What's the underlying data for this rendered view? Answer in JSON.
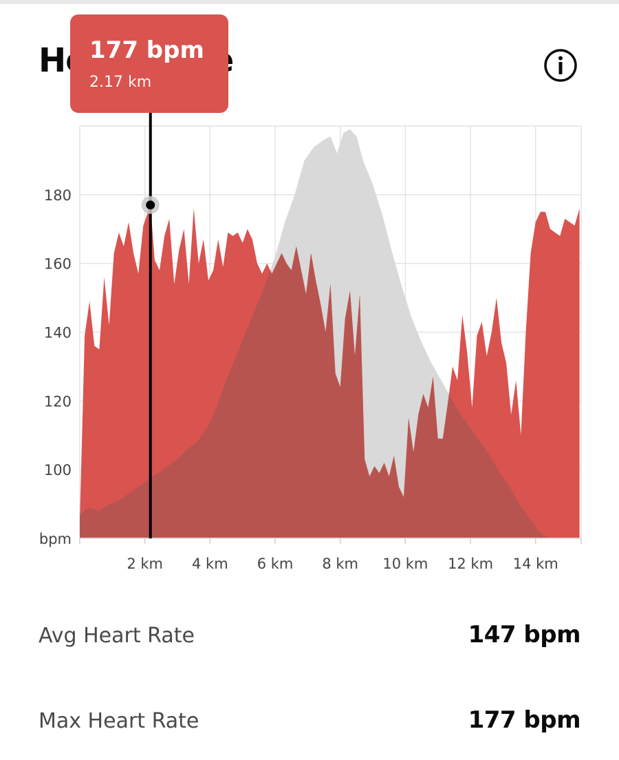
{
  "header": {
    "title": "Heart Rate"
  },
  "tooltip": {
    "value": "177 bpm",
    "distance": "2.17 km"
  },
  "stats": [
    {
      "label": "Avg Heart Rate",
      "value": "147 bpm"
    },
    {
      "label": "Max Heart Rate",
      "value": "177 bpm"
    }
  ],
  "colors": {
    "heart_rate": "#d9534f",
    "elevation": "#d9d9d9",
    "overlap": "#b85450",
    "cursor": "#000000"
  },
  "icons": {
    "info": "info-circle-icon"
  },
  "chart_data": {
    "type": "area",
    "ylabel": "bpm",
    "xlim": [
      0,
      15.4
    ],
    "ylim": [
      80,
      200
    ],
    "x_ticks": [
      {
        "value": 2,
        "label": "2 km"
      },
      {
        "value": 4,
        "label": "4 km"
      },
      {
        "value": 6,
        "label": "6 km"
      },
      {
        "value": 8,
        "label": "8 km"
      },
      {
        "value": 10,
        "label": "10 km"
      },
      {
        "value": 12,
        "label": "12 km"
      },
      {
        "value": 14,
        "label": "14 km"
      }
    ],
    "y_ticks": [
      {
        "value": 80,
        "label": "bpm"
      },
      {
        "value": 100,
        "label": "100"
      },
      {
        "value": 120,
        "label": "120"
      },
      {
        "value": 140,
        "label": "140"
      },
      {
        "value": 160,
        "label": "160"
      },
      {
        "value": 180,
        "label": "180"
      }
    ],
    "grid": true,
    "cursor": {
      "x": 2.17,
      "y": 177
    },
    "series": [
      {
        "kind": "heart_rate",
        "points": [
          [
            0.0,
            85
          ],
          [
            0.15,
            139
          ],
          [
            0.3,
            149
          ],
          [
            0.45,
            136
          ],
          [
            0.6,
            135
          ],
          [
            0.75,
            156
          ],
          [
            0.9,
            142
          ],
          [
            1.05,
            163
          ],
          [
            1.2,
            169
          ],
          [
            1.35,
            165
          ],
          [
            1.5,
            172
          ],
          [
            1.65,
            163
          ],
          [
            1.8,
            157
          ],
          [
            1.95,
            171
          ],
          [
            2.17,
            177
          ],
          [
            2.3,
            161
          ],
          [
            2.45,
            158
          ],
          [
            2.6,
            168
          ],
          [
            2.75,
            173
          ],
          [
            2.9,
            154
          ],
          [
            3.05,
            164
          ],
          [
            3.2,
            170
          ],
          [
            3.35,
            154
          ],
          [
            3.5,
            176
          ],
          [
            3.65,
            160
          ],
          [
            3.8,
            167
          ],
          [
            3.95,
            155
          ],
          [
            4.1,
            158
          ],
          [
            4.25,
            167
          ],
          [
            4.4,
            159
          ],
          [
            4.55,
            169
          ],
          [
            4.7,
            168
          ],
          [
            4.85,
            169
          ],
          [
            5.0,
            166
          ],
          [
            5.15,
            170
          ],
          [
            5.3,
            167
          ],
          [
            5.45,
            160
          ],
          [
            5.6,
            157
          ],
          [
            5.75,
            160
          ],
          [
            5.9,
            157
          ],
          [
            6.05,
            160
          ],
          [
            6.2,
            163
          ],
          [
            6.35,
            160
          ],
          [
            6.5,
            158
          ],
          [
            6.65,
            165
          ],
          [
            6.8,
            158
          ],
          [
            6.95,
            151
          ],
          [
            7.1,
            163
          ],
          [
            7.25,
            155
          ],
          [
            7.4,
            148
          ],
          [
            7.55,
            140
          ],
          [
            7.7,
            154
          ],
          [
            7.85,
            128
          ],
          [
            8.0,
            124
          ],
          [
            8.15,
            144
          ],
          [
            8.3,
            152
          ],
          [
            8.45,
            133
          ],
          [
            8.6,
            151
          ],
          [
            8.75,
            103
          ],
          [
            8.9,
            98
          ],
          [
            9.05,
            101
          ],
          [
            9.2,
            99
          ],
          [
            9.35,
            102
          ],
          [
            9.5,
            98
          ],
          [
            9.65,
            104
          ],
          [
            9.8,
            95
          ],
          [
            9.95,
            92
          ],
          [
            10.1,
            115
          ],
          [
            10.25,
            105
          ],
          [
            10.4,
            116
          ],
          [
            10.55,
            122
          ],
          [
            10.7,
            118
          ],
          [
            10.85,
            127
          ],
          [
            11.0,
            109
          ],
          [
            11.15,
            109
          ],
          [
            11.3,
            119
          ],
          [
            11.45,
            130
          ],
          [
            11.6,
            126
          ],
          [
            11.75,
            145
          ],
          [
            11.9,
            134
          ],
          [
            12.05,
            118
          ],
          [
            12.2,
            139
          ],
          [
            12.35,
            143
          ],
          [
            12.5,
            133
          ],
          [
            12.65,
            140
          ],
          [
            12.8,
            150
          ],
          [
            12.95,
            137
          ],
          [
            13.1,
            131
          ],
          [
            13.25,
            116
          ],
          [
            13.4,
            126
          ],
          [
            13.55,
            110
          ],
          [
            13.7,
            140
          ],
          [
            13.85,
            163
          ],
          [
            14.0,
            172
          ],
          [
            14.15,
            175
          ],
          [
            14.3,
            175
          ],
          [
            14.45,
            170
          ],
          [
            14.6,
            169
          ],
          [
            14.75,
            168
          ],
          [
            14.9,
            173
          ],
          [
            15.05,
            172
          ],
          [
            15.2,
            171
          ],
          [
            15.35,
            176
          ]
        ]
      },
      {
        "kind": "elevation",
        "points": [
          [
            0.0,
            87
          ],
          [
            0.3,
            89
          ],
          [
            0.6,
            88
          ],
          [
            0.9,
            90
          ],
          [
            1.2,
            91
          ],
          [
            1.5,
            93
          ],
          [
            1.8,
            95
          ],
          [
            2.1,
            97
          ],
          [
            2.4,
            99
          ],
          [
            2.7,
            101
          ],
          [
            3.0,
            103
          ],
          [
            3.3,
            106
          ],
          [
            3.6,
            108
          ],
          [
            3.9,
            112
          ],
          [
            4.2,
            118
          ],
          [
            4.5,
            126
          ],
          [
            4.8,
            133
          ],
          [
            5.1,
            140
          ],
          [
            5.4,
            147
          ],
          [
            5.7,
            154
          ],
          [
            6.0,
            162
          ],
          [
            6.3,
            172
          ],
          [
            6.6,
            180
          ],
          [
            6.9,
            190
          ],
          [
            7.2,
            194
          ],
          [
            7.5,
            196
          ],
          [
            7.7,
            197
          ],
          [
            7.9,
            192
          ],
          [
            8.1,
            198
          ],
          [
            8.3,
            199
          ],
          [
            8.5,
            197
          ],
          [
            8.7,
            190
          ],
          [
            9.0,
            183
          ],
          [
            9.3,
            174
          ],
          [
            9.6,
            163
          ],
          [
            9.9,
            153
          ],
          [
            10.2,
            144
          ],
          [
            10.5,
            137
          ],
          [
            10.8,
            131
          ],
          [
            11.1,
            126
          ],
          [
            11.4,
            121
          ],
          [
            11.7,
            116
          ],
          [
            12.0,
            112
          ],
          [
            12.3,
            108
          ],
          [
            12.6,
            104
          ],
          [
            12.9,
            99
          ],
          [
            13.2,
            95
          ],
          [
            13.5,
            90
          ],
          [
            13.8,
            86
          ],
          [
            14.1,
            82
          ],
          [
            14.4,
            80
          ],
          [
            15.4,
            80
          ]
        ]
      }
    ]
  }
}
